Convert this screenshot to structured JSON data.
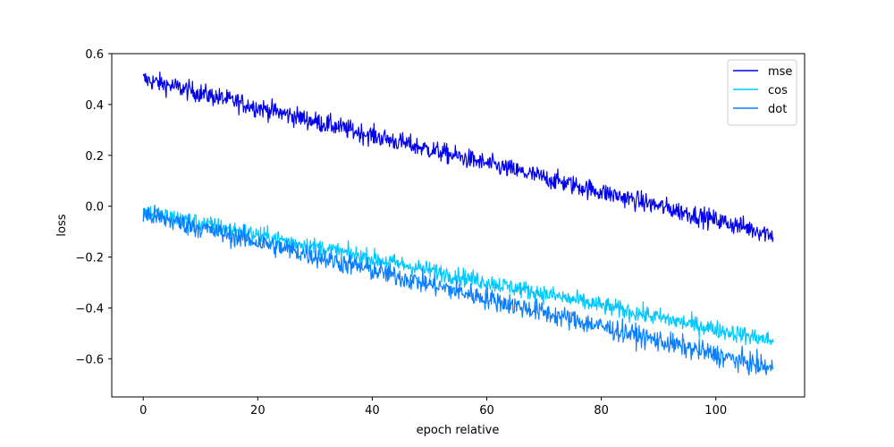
{
  "chart_data": {
    "type": "line",
    "title": "",
    "xlabel": "epoch relative",
    "ylabel": "loss",
    "xlim": [
      -5.5,
      115.5
    ],
    "ylim": [
      -0.75,
      0.6
    ],
    "xticks": [
      0,
      20,
      40,
      60,
      80,
      100
    ],
    "yticks": [
      0.6,
      0.4,
      0.2,
      0.0,
      -0.2,
      -0.4,
      -0.6
    ],
    "ytick_labels": [
      "0.6",
      "0.4",
      "0.2",
      "0.0",
      "−0.2",
      "−0.4",
      "−0.6"
    ],
    "grid": false,
    "legend_position": "top-right",
    "x_range": [
      0,
      110
    ],
    "n_points": 1100,
    "series": [
      {
        "name": "mse",
        "color": "#0000ee",
        "start": 0.5,
        "end": -0.11,
        "noise": 0.055
      },
      {
        "name": "cos",
        "color": "#00c8ff",
        "start": -0.02,
        "end": -0.53,
        "noise": 0.05
      },
      {
        "name": "dot",
        "color": "#0a7eff",
        "start": -0.03,
        "end": -0.64,
        "noise": 0.06
      }
    ]
  }
}
